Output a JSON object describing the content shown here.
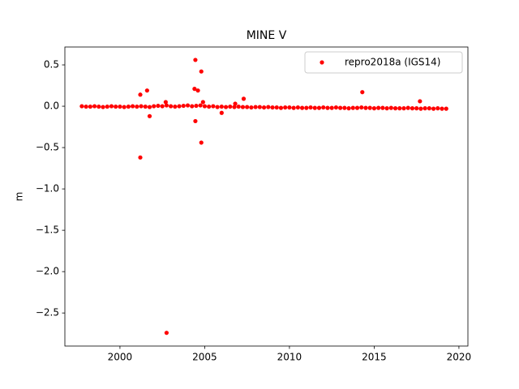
{
  "chart_data": {
    "type": "scatter",
    "title": "MINE V",
    "ylabel": "m",
    "xlim": [
      1996.75,
      2020.53
    ],
    "ylim": [
      -2.9,
      0.716
    ],
    "xticks": [
      2000,
      2005,
      2010,
      2015,
      2020
    ],
    "yticks": [
      {
        "value": -2.5,
        "label": "−2.5"
      },
      {
        "value": -2.0,
        "label": "−2.0"
      },
      {
        "value": -1.5,
        "label": "−1.5"
      },
      {
        "value": -1.0,
        "label": "−1.0"
      },
      {
        "value": -0.5,
        "label": "−0.5"
      },
      {
        "value": 0,
        "label": "0.0"
      },
      0.5
    ],
    "legend": "upper right",
    "grid": false,
    "series": [
      {
        "name": "repro2018a (IGS14)",
        "color": "#ff0000",
        "x": [
          1997.75,
          1998,
          1998.25,
          1998.5,
          1998.75,
          1999,
          1999.25,
          1999.5,
          1999.75,
          2000,
          2000.25,
          2000.5,
          2000.75,
          2001,
          2001.25,
          2001.5,
          2001.75,
          2002,
          2002.25,
          2002.5,
          2002.75,
          2003,
          2003.25,
          2003.5,
          2003.75,
          2004,
          2004.25,
          2004.5,
          2004.75,
          2005,
          2005.25,
          2005.5,
          2005.75,
          2006,
          2006.25,
          2006.5,
          2006.75,
          2007,
          2007.25,
          2007.5,
          2007.75,
          2008,
          2008.25,
          2008.5,
          2008.75,
          2009,
          2009.25,
          2009.5,
          2009.75,
          2010,
          2010.25,
          2010.5,
          2010.75,
          2011,
          2011.25,
          2011.5,
          2011.75,
          2012,
          2012.25,
          2012.5,
          2012.75,
          2013,
          2013.25,
          2013.5,
          2013.75,
          2014,
          2014.25,
          2014.5,
          2014.75,
          2015,
          2015.25,
          2015.5,
          2015.75,
          2016,
          2016.25,
          2016.5,
          2016.75,
          2017,
          2017.25,
          2017.5,
          2017.75,
          2018,
          2018.25,
          2018.5,
          2018.75,
          2019,
          2019.25,
          2001.2,
          2001.6,
          2001.75,
          2001.2,
          2002.75,
          2002.7,
          2004.45,
          2004.4,
          2004.6,
          2004.8,
          2004.45,
          2004.8,
          2006.0,
          2007.3,
          2006.8,
          2014.3,
          2017.7,
          2004.9
        ],
        "values": [
          0,
          -0.005,
          -0.005,
          0,
          -0.005,
          -0.01,
          -0.005,
          0,
          -0.005,
          -0.005,
          -0.01,
          -0.005,
          0,
          -0.005,
          0,
          -0.005,
          -0.01,
          0,
          0.005,
          0,
          0.01,
          0,
          -0.005,
          0,
          0.005,
          0.01,
          0,
          0.005,
          0.01,
          0,
          -0.005,
          0,
          -0.01,
          -0.005,
          -0.01,
          -0.005,
          -0.01,
          -0.005,
          -0.01,
          -0.01,
          -0.015,
          -0.01,
          -0.01,
          -0.015,
          -0.01,
          -0.015,
          -0.015,
          -0.02,
          -0.015,
          -0.015,
          -0.02,
          -0.015,
          -0.02,
          -0.02,
          -0.015,
          -0.02,
          -0.02,
          -0.015,
          -0.02,
          -0.02,
          -0.015,
          -0.02,
          -0.02,
          -0.025,
          -0.02,
          -0.02,
          -0.015,
          -0.02,
          -0.02,
          -0.025,
          -0.02,
          -0.02,
          -0.025,
          -0.02,
          -0.025,
          -0.025,
          -0.025,
          -0.02,
          -0.025,
          -0.025,
          -0.03,
          -0.025,
          -0.025,
          -0.03,
          -0.025,
          -0.03,
          -0.03,
          0.14,
          0.19,
          -0.12,
          -0.62,
          -2.74,
          0.05,
          0.56,
          0.21,
          0.19,
          0.42,
          -0.18,
          -0.44,
          -0.08,
          0.09,
          0.03,
          0.17,
          0.06,
          0.05
        ]
      }
    ]
  }
}
